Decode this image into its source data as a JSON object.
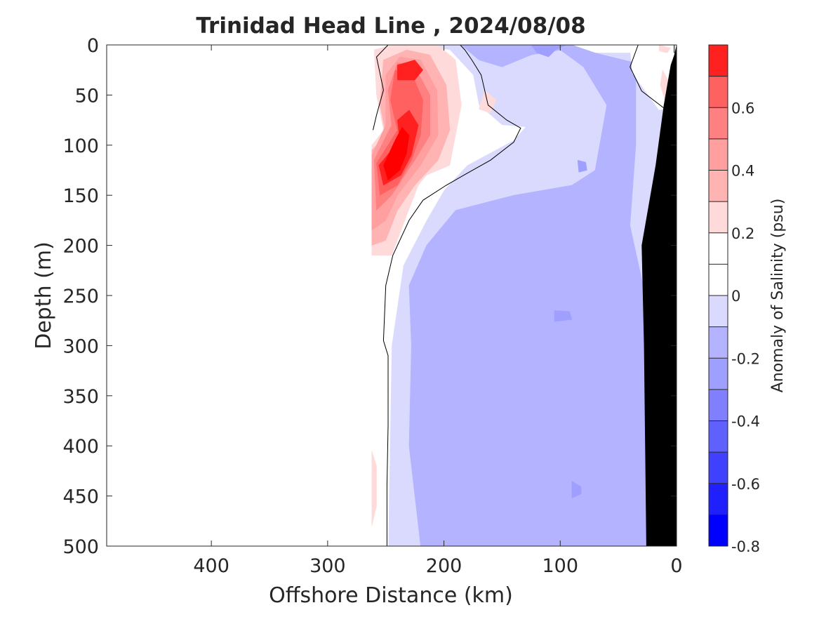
{
  "chart_data": {
    "type": "heatmap",
    "title": "Trinidad Head Line , 2024/08/08",
    "xlabel": "Offshore Distance (km)",
    "ylabel": "Depth (m)",
    "xlim": [
      490,
      0
    ],
    "ylim": [
      0,
      500
    ],
    "x_reversed": true,
    "y_reversed": true,
    "x_ticks": [
      400,
      300,
      200,
      100,
      0
    ],
    "y_ticks": [
      0,
      50,
      100,
      150,
      200,
      250,
      300,
      350,
      400,
      450,
      500
    ],
    "grid": false,
    "colorbar": {
      "label": "Anomaly of Salinity (psu)",
      "range": [
        -0.8,
        0.8
      ],
      "tick_values": [
        -0.8,
        -0.6,
        -0.4,
        -0.2,
        0,
        0.2,
        0.4,
        0.6
      ],
      "tick_labels": [
        "-0.8",
        "-0.6",
        "-0.4",
        "-0.2",
        "0",
        "0.2",
        "0.4",
        "0.6"
      ],
      "levels": [
        {
          "from": -0.8,
          "to": -0.7,
          "color": "#0000ff"
        },
        {
          "from": -0.7,
          "to": -0.6,
          "color": "#2020ff"
        },
        {
          "from": -0.6,
          "to": -0.5,
          "color": "#4040ff"
        },
        {
          "from": -0.5,
          "to": -0.4,
          "color": "#6060ff"
        },
        {
          "from": -0.4,
          "to": -0.3,
          "color": "#8080ff"
        },
        {
          "from": -0.3,
          "to": -0.2,
          "color": "#9f9fff"
        },
        {
          "from": -0.2,
          "to": -0.1,
          "color": "#b3b3ff"
        },
        {
          "from": -0.1,
          "to": 0.0,
          "color": "#dadaff"
        },
        {
          "from": 0.0,
          "to": 0.1,
          "color": "#ffffff"
        },
        {
          "from": 0.1,
          "to": 0.2,
          "color": "#ffffff"
        },
        {
          "from": 0.2,
          "to": 0.3,
          "color": "#ffdada"
        },
        {
          "from": 0.3,
          "to": 0.4,
          "color": "#ffb3b3"
        },
        {
          "from": 0.4,
          "to": 0.5,
          "color": "#ff9f9f"
        },
        {
          "from": 0.5,
          "to": 0.6,
          "color": "#ff8080"
        },
        {
          "from": 0.6,
          "to": 0.7,
          "color": "#ff6060"
        },
        {
          "from": 0.7,
          "to": 0.8,
          "color": "#ff2020"
        }
      ]
    },
    "colors": {
      "strong_positive": "#ff0000",
      "positive_1": "#ff2020",
      "positive_2": "#ff4040",
      "positive_3": "#ff6060",
      "positive_4": "#ff8080",
      "positive_5": "#ffb3b3",
      "positive_6": "#ffdada",
      "negative_1": "#dadaff",
      "negative_2": "#b3b3ff",
      "negative_3": "#8080ff",
      "negative_4": "#6060ff",
      "bottom_topography": "#000000",
      "zero_contour": "#000000"
    },
    "regions": [
      {
        "level": -0.15,
        "color": "#dadaff",
        "points": [
          [
            262,
            0
          ],
          [
            90,
            0
          ],
          [
            70,
            8
          ],
          [
            30,
            8
          ],
          [
            0,
            0
          ],
          [
            0,
            100
          ],
          [
            25,
            180
          ],
          [
            20,
            300
          ],
          [
            23,
            500
          ],
          [
            262,
            500
          ]
        ]
      },
      {
        "level": -0.2,
        "color": "#b3b3ff",
        "points": [
          [
            220,
            500
          ],
          [
            230,
            400
          ],
          [
            228,
            300
          ],
          [
            230,
            240
          ],
          [
            215,
            200
          ],
          [
            190,
            165
          ],
          [
            140,
            150
          ],
          [
            90,
            140
          ],
          [
            70,
            125
          ],
          [
            60,
            60
          ],
          [
            80,
            22
          ],
          [
            100,
            5
          ],
          [
            125,
            10
          ],
          [
            150,
            22
          ],
          [
            170,
            15
          ],
          [
            185,
            0
          ],
          [
            90,
            0
          ],
          [
            70,
            8
          ],
          [
            35,
            18
          ],
          [
            35,
            100
          ],
          [
            40,
            180
          ],
          [
            25,
            260
          ],
          [
            24,
            500
          ]
        ]
      },
      {
        "level": -0.35,
        "color": "#9f9fff",
        "points": [
          [
            125,
            0
          ],
          [
            95,
            0
          ],
          [
            104,
            5
          ],
          [
            110,
            12
          ],
          [
            120,
            8
          ]
        ]
      },
      {
        "level": -0.35,
        "color": "#9f9fff",
        "points": [
          [
            85,
            115
          ],
          [
            78,
            117
          ],
          [
            77,
            125
          ],
          [
            84,
            127
          ]
        ]
      },
      {
        "level": -0.35,
        "color": "#9f9fff",
        "points": [
          [
            105,
            265
          ],
          [
            92,
            266
          ],
          [
            90,
            274
          ],
          [
            105,
            276
          ]
        ]
      },
      {
        "level": -0.35,
        "color": "#9f9fff",
        "points": [
          [
            90,
            435
          ],
          [
            82,
            441
          ],
          [
            82,
            448
          ],
          [
            90,
            452
          ]
        ]
      },
      {
        "level": 0.0,
        "color": "#ffffff",
        "points": [
          [
            262,
            500
          ],
          [
            262,
            0
          ],
          [
            240,
            10
          ],
          [
            248,
            30
          ],
          [
            248,
            70
          ],
          [
            262,
            100
          ]
        ]
      },
      {
        "level": 0.0,
        "color": "#ffffff",
        "points": [
          [
            240,
            0
          ],
          [
            195,
            5
          ],
          [
            175,
            30
          ],
          [
            170,
            60
          ],
          [
            150,
            80
          ],
          [
            130,
            82
          ],
          [
            140,
            95
          ],
          [
            180,
            120
          ],
          [
            200,
            145
          ],
          [
            215,
            175
          ],
          [
            235,
            220
          ],
          [
            245,
            300
          ],
          [
            248,
            500
          ],
          [
            262,
            500
          ],
          [
            262,
            0
          ]
        ]
      },
      {
        "level": 0.0,
        "color": "#ffffff",
        "points": [
          [
            40,
            0
          ],
          [
            0,
            0
          ],
          [
            0,
            60
          ],
          [
            15,
            65
          ],
          [
            38,
            28
          ]
        ]
      },
      {
        "level": 0.15,
        "color": "#ffdada",
        "points": [
          [
            262,
            100
          ],
          [
            262,
            210
          ],
          [
            245,
            210
          ],
          [
            232,
            170
          ],
          [
            222,
            140
          ],
          [
            215,
            130
          ],
          [
            195,
            120
          ],
          [
            185,
            60
          ],
          [
            190,
            15
          ],
          [
            205,
            0
          ],
          [
            245,
            0
          ],
          [
            260,
            5
          ],
          [
            258,
            50
          ],
          [
            252,
            85
          ]
        ]
      },
      {
        "level": 0.15,
        "color": "#ffdada",
        "points": [
          [
            165,
            45
          ],
          [
            155,
            55
          ],
          [
            160,
            68
          ],
          [
            170,
            64
          ]
        ]
      },
      {
        "level": 0.15,
        "color": "#ffdada",
        "points": [
          [
            262,
            405
          ],
          [
            258,
            420
          ],
          [
            258,
            460
          ],
          [
            262,
            480
          ]
        ]
      },
      {
        "level": 0.15,
        "color": "#ffdada",
        "points": [
          [
            15,
            0
          ],
          [
            5,
            3
          ],
          [
            8,
            8
          ],
          [
            15,
            6
          ]
        ]
      },
      {
        "level": 0.15,
        "color": "#ffdada",
        "points": [
          [
            12,
            25
          ],
          [
            5,
            40
          ],
          [
            10,
            55
          ],
          [
            14,
            40
          ]
        ]
      },
      {
        "level": 0.25,
        "color": "#ffb3b3",
        "points": [
          [
            262,
            105
          ],
          [
            262,
            200
          ],
          [
            250,
            195
          ],
          [
            240,
            165
          ],
          [
            225,
            140
          ],
          [
            205,
            115
          ],
          [
            195,
            85
          ],
          [
            198,
            40
          ],
          [
            212,
            10
          ],
          [
            232,
            5
          ],
          [
            252,
            15
          ],
          [
            255,
            60
          ],
          [
            250,
            90
          ]
        ]
      },
      {
        "level": 0.35,
        "color": "#ff9f9f",
        "points": [
          [
            262,
            110
          ],
          [
            262,
            185
          ],
          [
            250,
            175
          ],
          [
            240,
            150
          ],
          [
            220,
            120
          ],
          [
            205,
            90
          ],
          [
            206,
            45
          ],
          [
            220,
            15
          ],
          [
            238,
            12
          ],
          [
            250,
            30
          ],
          [
            250,
            80
          ]
        ]
      },
      {
        "level": 0.45,
        "color": "#ff8080",
        "points": [
          [
            260,
            115
          ],
          [
            258,
            165
          ],
          [
            245,
            150
          ],
          [
            225,
            115
          ],
          [
            212,
            90
          ],
          [
            212,
            50
          ],
          [
            225,
            22
          ],
          [
            240,
            18
          ],
          [
            248,
            45
          ],
          [
            245,
            80
          ]
        ]
      },
      {
        "level": 0.55,
        "color": "#ff6060",
        "points": [
          [
            258,
            118
          ],
          [
            255,
            150
          ],
          [
            240,
            140
          ],
          [
            228,
            115
          ],
          [
            220,
            90
          ],
          [
            218,
            55
          ],
          [
            228,
            28
          ],
          [
            242,
            25
          ],
          [
            246,
            55
          ],
          [
            240,
            85
          ]
        ]
      },
      {
        "level": 0.65,
        "color": "#ff2020",
        "points": [
          [
            256,
            120
          ],
          [
            252,
            140
          ],
          [
            237,
            130
          ],
          [
            228,
            110
          ],
          [
            222,
            80
          ],
          [
            230,
            65
          ],
          [
            240,
            75
          ],
          [
            238,
            95
          ]
        ]
      },
      {
        "level": 0.65,
        "color": "#ff2020",
        "points": [
          [
            240,
            20
          ],
          [
            225,
            15
          ],
          [
            218,
            25
          ],
          [
            225,
            35
          ],
          [
            240,
            35
          ]
        ]
      },
      {
        "level": 0.75,
        "color": "#ff0000",
        "points": [
          [
            252,
            120
          ],
          [
            248,
            135
          ],
          [
            238,
            125
          ],
          [
            232,
            108
          ],
          [
            230,
            90
          ],
          [
            236,
            82
          ],
          [
            242,
            95
          ]
        ]
      }
    ],
    "zero_contours": [
      [
        [
          249,
          500
        ],
        [
          249,
          440
        ],
        [
          248,
          380
        ],
        [
          248,
          310
        ],
        [
          252,
          295
        ],
        [
          250,
          240
        ],
        [
          244,
          210
        ],
        [
          230,
          175
        ],
        [
          218,
          155
        ],
        [
          198,
          140
        ],
        [
          180,
          128
        ],
        [
          160,
          115
        ],
        [
          140,
          97
        ],
        [
          134,
          83
        ],
        [
          146,
          75
        ],
        [
          162,
          60
        ],
        [
          168,
          30
        ],
        [
          176,
          15
        ],
        [
          182,
          5
        ],
        [
          186,
          0
        ]
      ],
      [
        [
          248,
          0
        ],
        [
          258,
          12
        ],
        [
          252,
          45
        ],
        [
          258,
          70
        ],
        [
          261,
          85
        ]
      ],
      [
        [
          33,
          0
        ],
        [
          40,
          22
        ],
        [
          30,
          46
        ],
        [
          12,
          62
        ],
        [
          3,
          70
        ]
      ],
      [
        [
          2,
          8
        ],
        [
          2,
          0
        ]
      ]
    ],
    "bottom_profile": [
      [
        0,
        0
      ],
      [
        0,
        500
      ],
      [
        26,
        500
      ],
      [
        28,
        300
      ],
      [
        30,
        200
      ],
      [
        18,
        120
      ],
      [
        11,
        60
      ],
      [
        5,
        20
      ],
      [
        2,
        10
      ]
    ]
  }
}
